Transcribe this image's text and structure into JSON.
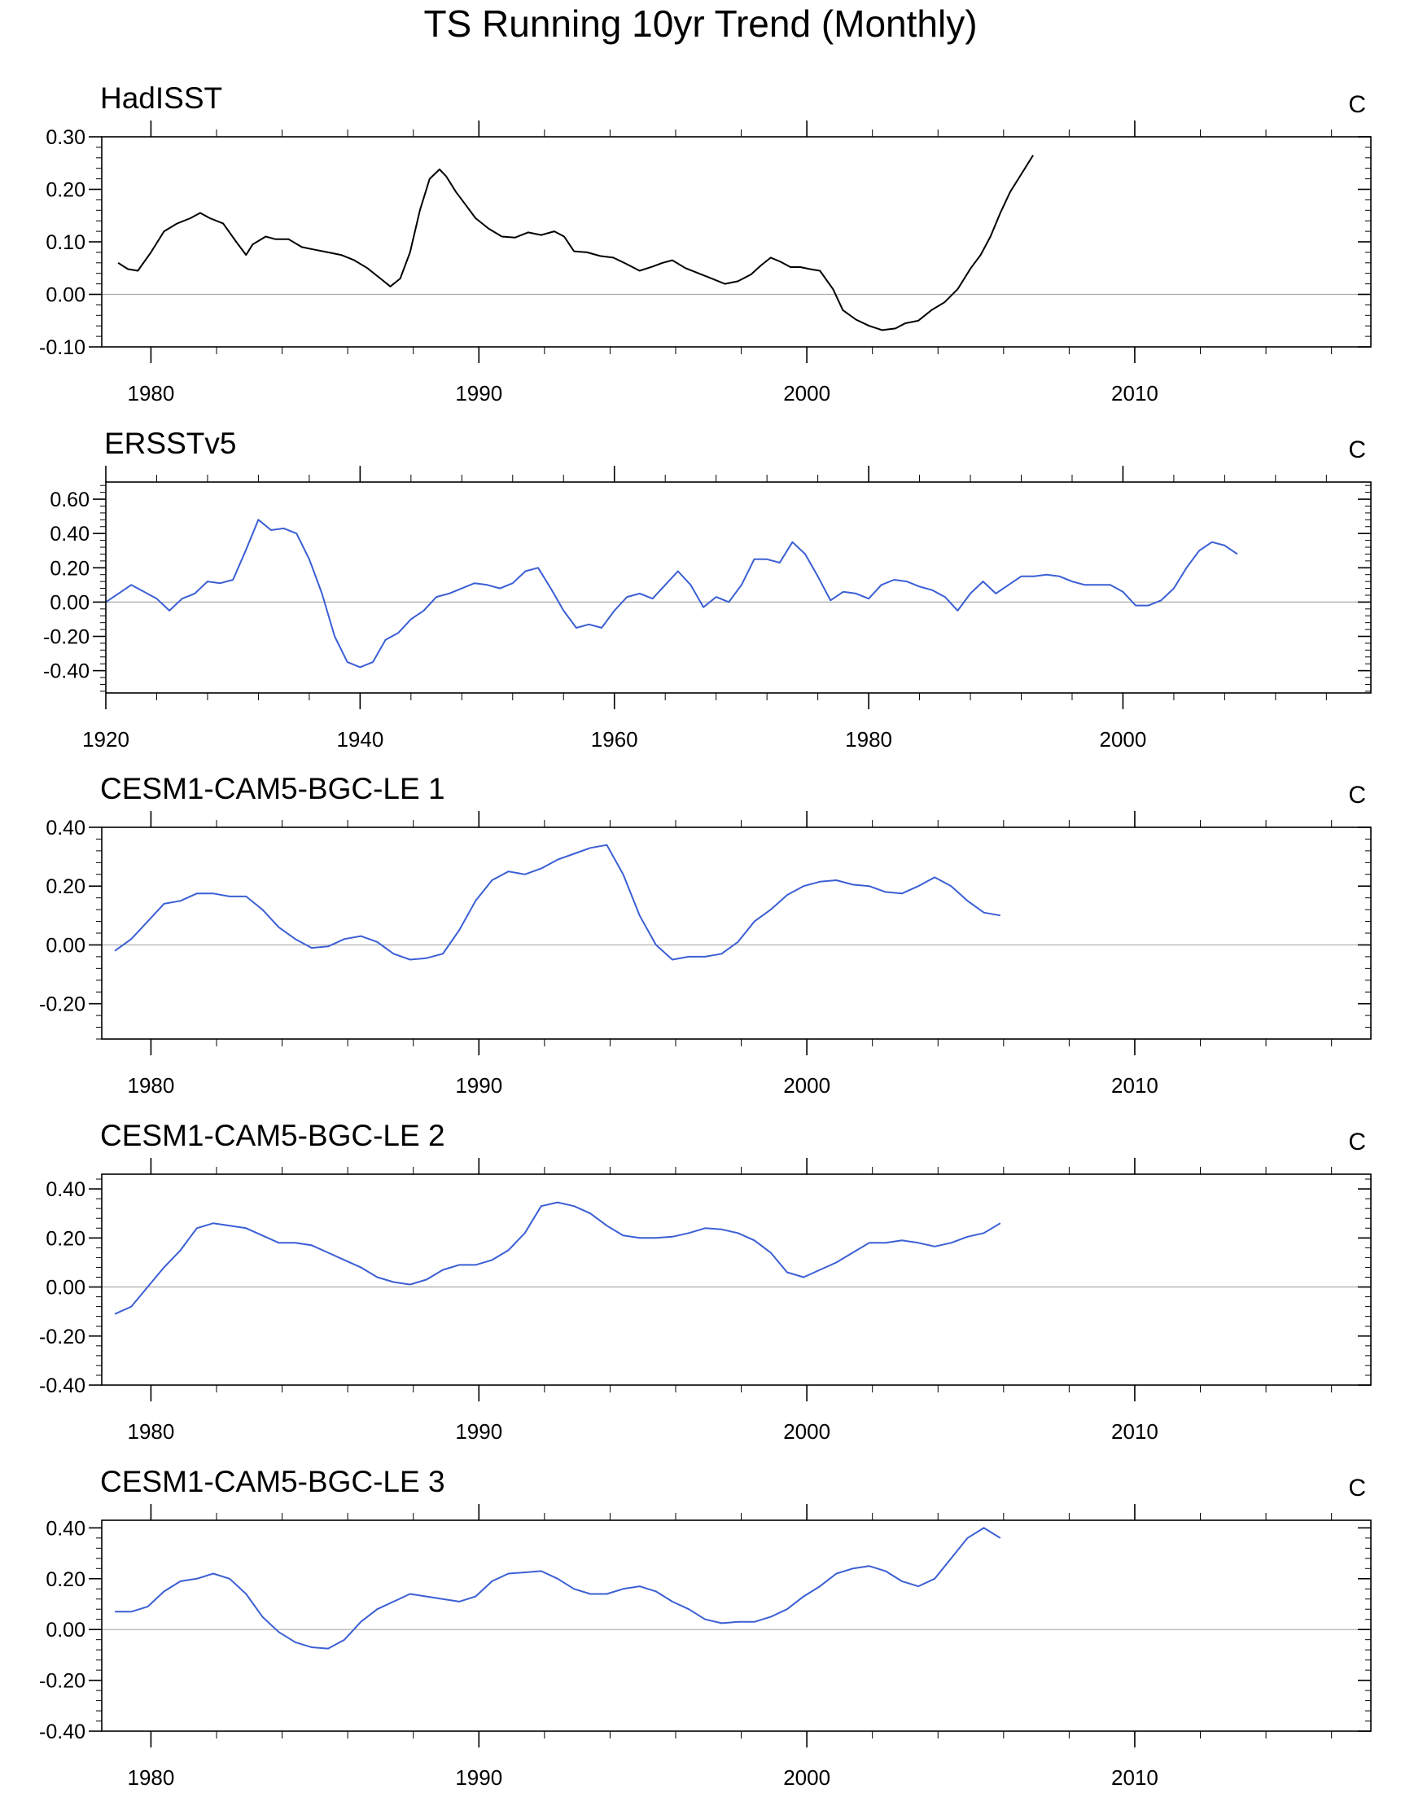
{
  "title": "TS Running 10yr Trend (Monthly)",
  "chart_data": [
    {
      "type": "line",
      "title": "HadISST",
      "units": "C",
      "xlim": [
        1978.5,
        2017.2
      ],
      "xticks": [
        1980,
        1990,
        2000,
        2010
      ],
      "ylim": [
        -0.1,
        0.3
      ],
      "yticks": [
        -0.1,
        0.0,
        0.1,
        0.2,
        0.3
      ],
      "ytick_labels": [
        "-0.10",
        "0.00",
        "0.10",
        "0.20",
        "0.30"
      ],
      "zero_line": true,
      "series": [
        {
          "color": "#000000",
          "x": [
            1979.0,
            1979.3,
            1979.6,
            1980.0,
            1980.4,
            1980.8,
            1981.2,
            1981.5,
            1981.8,
            1982.2,
            1982.6,
            1982.9,
            1983.1,
            1983.5,
            1983.8,
            1984.2,
            1984.6,
            1985.0,
            1985.4,
            1985.8,
            1986.2,
            1986.6,
            1987.0,
            1987.3,
            1987.6,
            1987.9,
            1988.2,
            1988.5,
            1988.8,
            1989.0,
            1989.3,
            1989.6,
            1989.9,
            1990.3,
            1990.7,
            1991.1,
            1991.5,
            1991.9,
            1992.3,
            1992.6,
            1992.9,
            1993.3,
            1993.7,
            1994.1,
            1994.5,
            1994.9,
            1995.3,
            1995.6,
            1995.9,
            1996.3,
            1996.7,
            1997.1,
            1997.5,
            1997.9,
            1998.3,
            1998.6,
            1998.9,
            1999.2,
            1999.5,
            1999.8,
            2000.1,
            2000.4,
            2000.8,
            2001.1,
            2001.5,
            2001.9,
            2002.3,
            2002.7,
            2003.0,
            2003.4,
            2003.8,
            2004.2,
            2004.6,
            2005.0,
            2005.3,
            2005.6,
            2005.9,
            2006.2,
            2006.5,
            2006.9
          ],
          "y": [
            0.06,
            0.048,
            0.045,
            0.08,
            0.12,
            0.135,
            0.145,
            0.155,
            0.145,
            0.135,
            0.1,
            0.075,
            0.095,
            0.11,
            0.105,
            0.105,
            0.09,
            0.085,
            0.08,
            0.075,
            0.065,
            0.05,
            0.03,
            0.015,
            0.03,
            0.08,
            0.16,
            0.22,
            0.238,
            0.225,
            0.195,
            0.17,
            0.145,
            0.125,
            0.11,
            0.108,
            0.118,
            0.113,
            0.12,
            0.11,
            0.082,
            0.08,
            0.073,
            0.07,
            0.058,
            0.045,
            0.053,
            0.06,
            0.065,
            0.05,
            0.04,
            0.03,
            0.02,
            0.025,
            0.038,
            0.055,
            0.07,
            0.062,
            0.052,
            0.052,
            0.048,
            0.045,
            0.01,
            -0.03,
            -0.048,
            -0.06,
            -0.068,
            -0.065,
            -0.055,
            -0.05,
            -0.03,
            -0.015,
            0.01,
            0.05,
            0.075,
            0.11,
            0.155,
            0.195,
            0.225,
            0.265
          ]
        }
      ]
    },
    {
      "type": "line",
      "title": "ERSSTv5",
      "units": "C",
      "xlim": [
        1920,
        2019.5
      ],
      "xticks": [
        1920,
        1940,
        1960,
        1980,
        2000
      ],
      "ylim": [
        -0.53,
        0.7
      ],
      "yticks": [
        -0.4,
        -0.2,
        0.0,
        0.2,
        0.4,
        0.6
      ],
      "ytick_labels": [
        "-0.40",
        "-0.20",
        "0.00",
        "0.20",
        "0.40",
        "0.60"
      ],
      "zero_line": true,
      "series": [
        {
          "color": "#3b5fd4",
          "x": [
            1920.0,
            1921.0,
            1922.0,
            1923.0,
            1924.0,
            1925.0,
            1926.0,
            1927.0,
            1928.0,
            1929.0,
            1930.0,
            1931.0,
            1932.0,
            1933.0,
            1934.0,
            1935.0,
            1936.0,
            1937.0,
            1938.0,
            1939.0,
            1940.0,
            1941.0,
            1942.0,
            1943.0,
            1944.0,
            1945.0,
            1946.0,
            1947.0,
            1948.0,
            1949.0,
            1950.0,
            1951.0,
            1952.0,
            1953.0,
            1954.0,
            1955.0,
            1956.0,
            1957.0,
            1958.0,
            1959.0,
            1960.0,
            1961.0,
            1962.0,
            1963.0,
            1964.0,
            1965.0,
            1966.0,
            1967.0,
            1968.0,
            1969.0,
            1970.0,
            1971.0,
            1972.0,
            1973.0,
            1974.0,
            1975.0,
            1976.0,
            1977.0,
            1978.0,
            1979.0,
            1980.0,
            1981.0,
            1982.0,
            1983.0,
            1984.0,
            1985.0,
            1986.0,
            1987.0,
            1988.0,
            1989.0,
            1990.0,
            1991.0,
            1992.0,
            1993.0,
            1994.0,
            1995.0,
            1996.0,
            1997.0,
            1998.0,
            1999.0,
            2000.0,
            2001.0,
            2002.0,
            2003.0,
            2004.0,
            2005.0,
            2006.0,
            2007.0,
            2008.0,
            2009.0
          ],
          "y": [
            0.0,
            0.05,
            0.1,
            0.06,
            0.02,
            -0.05,
            0.02,
            0.05,
            0.12,
            0.11,
            0.13,
            0.3,
            0.48,
            0.42,
            0.43,
            0.4,
            0.25,
            0.05,
            -0.2,
            -0.35,
            -0.38,
            -0.35,
            -0.22,
            -0.18,
            -0.1,
            -0.05,
            0.03,
            0.05,
            0.08,
            0.11,
            0.1,
            0.08,
            0.11,
            0.18,
            0.2,
            0.08,
            -0.05,
            -0.15,
            -0.13,
            -0.15,
            -0.05,
            0.03,
            0.05,
            0.02,
            0.1,
            0.18,
            0.1,
            -0.03,
            0.03,
            0.0,
            0.1,
            0.25,
            0.25,
            0.23,
            0.35,
            0.28,
            0.15,
            0.01,
            0.06,
            0.05,
            0.02,
            0.1,
            0.13,
            0.12,
            0.09,
            0.07,
            0.03,
            -0.05,
            0.05,
            0.12,
            0.05,
            0.1,
            0.15,
            0.15,
            0.16,
            0.15,
            0.12,
            0.1,
            0.1,
            0.1,
            0.06,
            -0.02,
            -0.02,
            0.01,
            0.08,
            0.2,
            0.3,
            0.35,
            0.33,
            0.28
          ]
        }
      ]
    },
    {
      "type": "line",
      "title": "CESM1-CAM5-BGC-LE 1",
      "units": "C",
      "xlim": [
        1978.5,
        2017.2
      ],
      "xticks": [
        1980,
        1990,
        2000,
        2010
      ],
      "ylim": [
        -0.32,
        0.4
      ],
      "yticks": [
        -0.2,
        0.0,
        0.2,
        0.4
      ],
      "ytick_labels": [
        "-0.20",
        "0.00",
        "0.20",
        "0.40"
      ],
      "zero_line": true,
      "series": [
        {
          "color": "#3b5fd4",
          "x": [
            1978.9,
            1979.4,
            1979.9,
            1980.4,
            1980.9,
            1981.4,
            1981.9,
            1982.4,
            1982.9,
            1983.4,
            1983.9,
            1984.4,
            1984.9,
            1985.4,
            1985.9,
            1986.4,
            1986.9,
            1987.4,
            1987.9,
            1988.4,
            1988.9,
            1989.4,
            1989.9,
            1990.4,
            1990.9,
            1991.4,
            1991.9,
            1992.4,
            1992.9,
            1993.4,
            1993.9,
            1994.4,
            1994.9,
            1995.4,
            1995.9,
            1996.4,
            1996.9,
            1997.4,
            1997.9,
            1998.4,
            1998.9,
            1999.4,
            1999.9,
            2000.4,
            2000.9,
            2001.4,
            2001.9,
            2002.4,
            2002.9,
            2003.4,
            2003.9,
            2004.4,
            2004.9,
            2005.4,
            2005.9
          ],
          "y": [
            -0.02,
            0.02,
            0.08,
            0.14,
            0.15,
            0.175,
            0.175,
            0.165,
            0.165,
            0.12,
            0.06,
            0.02,
            -0.01,
            -0.005,
            0.02,
            0.03,
            0.01,
            -0.03,
            -0.05,
            -0.045,
            -0.03,
            0.05,
            0.15,
            0.22,
            0.25,
            0.24,
            0.26,
            0.29,
            0.31,
            0.33,
            0.34,
            0.24,
            0.1,
            0.0,
            -0.05,
            -0.04,
            -0.04,
            -0.03,
            0.01,
            0.08,
            0.12,
            0.17,
            0.2,
            0.215,
            0.22,
            0.205,
            0.2,
            0.18,
            0.175,
            0.2,
            0.23,
            0.2,
            0.15,
            0.11,
            0.1
          ]
        }
      ]
    },
    {
      "type": "line",
      "title": "CESM1-CAM5-BGC-LE 2",
      "units": "C",
      "xlim": [
        1978.5,
        2017.2
      ],
      "xticks": [
        1980,
        1990,
        2000,
        2010
      ],
      "ylim": [
        -0.4,
        0.46
      ],
      "yticks": [
        -0.4,
        -0.2,
        0.0,
        0.2,
        0.4
      ],
      "ytick_labels": [
        "-0.40",
        "-0.20",
        "0.00",
        "0.20",
        "0.40"
      ],
      "zero_line": true,
      "series": [
        {
          "color": "#3b5fd4",
          "x": [
            1978.9,
            1979.4,
            1979.9,
            1980.4,
            1980.9,
            1981.4,
            1981.9,
            1982.4,
            1982.9,
            1983.4,
            1983.9,
            1984.4,
            1984.9,
            1985.4,
            1985.9,
            1986.4,
            1986.9,
            1987.4,
            1987.9,
            1988.4,
            1988.9,
            1989.4,
            1989.9,
            1990.4,
            1990.9,
            1991.4,
            1991.9,
            1992.4,
            1992.9,
            1993.4,
            1993.9,
            1994.4,
            1994.9,
            1995.4,
            1995.9,
            1996.4,
            1996.9,
            1997.4,
            1997.9,
            1998.4,
            1998.9,
            1999.4,
            1999.9,
            2000.4,
            2000.9,
            2001.4,
            2001.9,
            2002.4,
            2002.9,
            2003.4,
            2003.9,
            2004.4,
            2004.9,
            2005.4,
            2005.9
          ],
          "y": [
            -0.11,
            -0.08,
            0.0,
            0.08,
            0.15,
            0.24,
            0.26,
            0.25,
            0.24,
            0.21,
            0.18,
            0.18,
            0.17,
            0.14,
            0.11,
            0.08,
            0.04,
            0.02,
            0.01,
            0.03,
            0.07,
            0.09,
            0.09,
            0.11,
            0.15,
            0.22,
            0.33,
            0.345,
            0.33,
            0.3,
            0.25,
            0.21,
            0.2,
            0.2,
            0.205,
            0.22,
            0.24,
            0.235,
            0.22,
            0.19,
            0.14,
            0.06,
            0.04,
            0.07,
            0.1,
            0.14,
            0.18,
            0.18,
            0.19,
            0.18,
            0.165,
            0.18,
            0.205,
            0.22,
            0.26
          ]
        }
      ]
    },
    {
      "type": "line",
      "title": "CESM1-CAM5-BGC-LE 3",
      "units": "C",
      "xlim": [
        1978.5,
        2017.2
      ],
      "xticks": [
        1980,
        1990,
        2000,
        2010
      ],
      "ylim": [
        -0.4,
        0.43
      ],
      "yticks": [
        -0.4,
        -0.2,
        0.0,
        0.2,
        0.4
      ],
      "ytick_labels": [
        "-0.40",
        "-0.20",
        "0.00",
        "0.20",
        "0.40"
      ],
      "zero_line": true,
      "series": [
        {
          "color": "#3b5fd4",
          "x": [
            1978.9,
            1979.4,
            1979.9,
            1980.4,
            1980.9,
            1981.4,
            1981.9,
            1982.4,
            1982.9,
            1983.4,
            1983.9,
            1984.4,
            1984.9,
            1985.4,
            1985.9,
            1986.4,
            1986.9,
            1987.4,
            1987.9,
            1988.4,
            1988.9,
            1989.4,
            1989.9,
            1990.4,
            1990.9,
            1991.4,
            1991.9,
            1992.4,
            1992.9,
            1993.4,
            1993.9,
            1994.4,
            1994.9,
            1995.4,
            1995.9,
            1996.4,
            1996.9,
            1997.4,
            1997.9,
            1998.4,
            1998.9,
            1999.4,
            1999.9,
            2000.4,
            2000.9,
            2001.4,
            2001.9,
            2002.4,
            2002.9,
            2003.4,
            2003.9,
            2004.4,
            2004.9,
            2005.4,
            2005.9
          ],
          "y": [
            0.07,
            0.07,
            0.09,
            0.15,
            0.19,
            0.2,
            0.22,
            0.2,
            0.14,
            0.05,
            -0.01,
            -0.05,
            -0.07,
            -0.075,
            -0.04,
            0.03,
            0.08,
            0.11,
            0.14,
            0.13,
            0.12,
            0.11,
            0.13,
            0.19,
            0.22,
            0.225,
            0.23,
            0.2,
            0.16,
            0.14,
            0.14,
            0.16,
            0.17,
            0.15,
            0.11,
            0.08,
            0.04,
            0.025,
            0.03,
            0.03,
            0.05,
            0.08,
            0.13,
            0.17,
            0.22,
            0.24,
            0.25,
            0.23,
            0.19,
            0.17,
            0.2,
            0.28,
            0.36,
            0.4,
            0.36
          ]
        }
      ]
    }
  ]
}
